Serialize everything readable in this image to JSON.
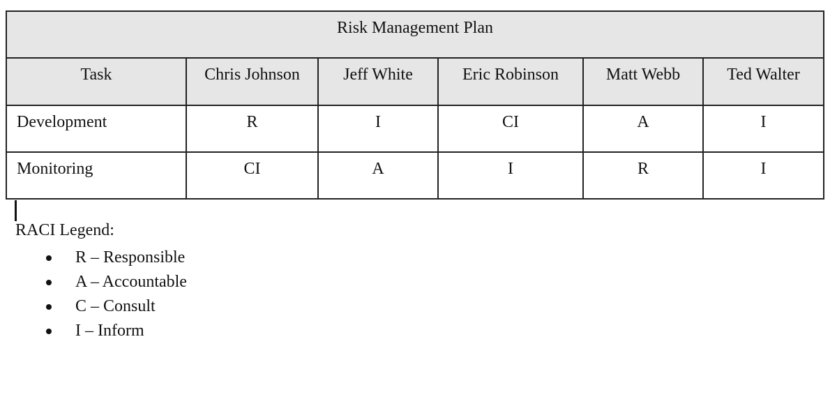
{
  "table": {
    "title": "Risk Management Plan",
    "headers": [
      "Task",
      "Chris Johnson",
      "Jeff White",
      "Eric Robinson",
      "Matt Webb",
      "Ted Walter"
    ],
    "rows": [
      [
        "Development",
        "R",
        "I",
        "CI",
        "A",
        "I"
      ],
      [
        "Monitoring",
        "CI",
        "A",
        "I",
        "R",
        "I"
      ]
    ]
  },
  "legend": {
    "title": "RACI Legend:",
    "items": [
      "R – Responsible",
      "A – Accountable",
      "C – Consult",
      "I – Inform"
    ]
  }
}
